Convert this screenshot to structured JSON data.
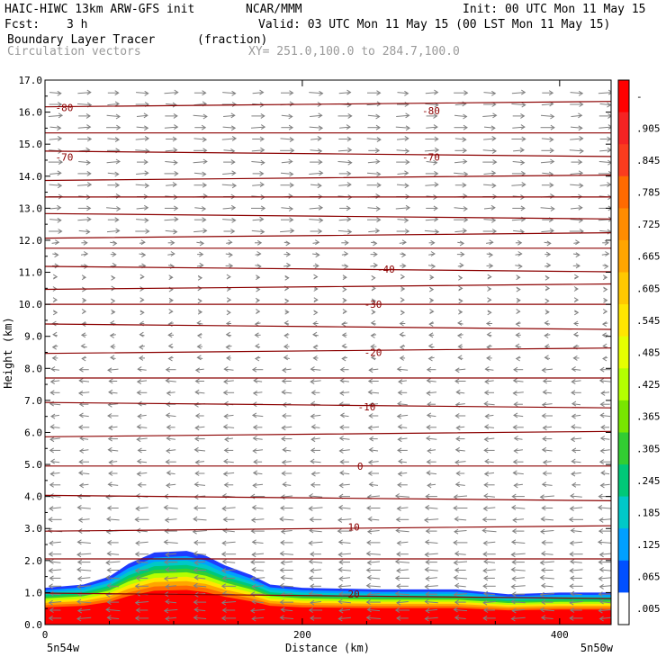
{
  "header": {
    "model": "HAIC-HIWC 13km ARW-GFS init",
    "org": "NCAR/MMM",
    "init": "Init: 00 UTC Mon 11 May 15",
    "fcst_label": "Fcst:",
    "fcst_value": "3 h",
    "valid": "Valid: 03 UTC Mon 11 May 15 (00 LST Mon 11 May 15)",
    "field_name": "Boundary Layer Tracer",
    "field_unit": "(fraction)",
    "vector_label": "Circulation vectors",
    "xy_label": "XY= 251.0,100.0 to 284.7,100.0"
  },
  "chart_data": {
    "type": "heatmap",
    "xlabel": "Distance (km)",
    "ylabel": "Height (km)",
    "xlim": [
      0,
      440
    ],
    "ylim": [
      0,
      17
    ],
    "x_ticks": [
      "0",
      "200",
      "400"
    ],
    "x_tick_values": [
      0,
      200,
      400
    ],
    "y_ticks": [
      "0.0",
      "1.0",
      "2.0",
      "3.0",
      "4.0",
      "5.0",
      "6.0",
      "7.0",
      "8.0",
      "9.0",
      "10.0",
      "11.0",
      "12.0",
      "13.0",
      "14.0",
      "15.0",
      "16.0",
      "17.0"
    ],
    "y_tick_values": [
      0,
      1,
      2,
      3,
      4,
      5,
      6,
      7,
      8,
      9,
      10,
      11,
      12,
      13,
      14,
      15,
      16,
      17
    ],
    "left_endpoint_label": "5n54w",
    "right_endpoint_label": "5n50w",
    "colorbar": {
      "labels": [
        "-",
        ".905",
        ".845",
        ".785",
        ".725",
        ".665",
        ".605",
        ".545",
        ".485",
        ".425",
        ".365",
        ".305",
        ".245",
        ".185",
        ".125",
        ".065",
        ".005"
      ],
      "colors": [
        "#ff0000",
        "#f52323",
        "#fa3c1e",
        "#ff6a00",
        "#ff8c00",
        "#ffa500",
        "#ffc800",
        "#ffe600",
        "#e6ff00",
        "#b4ff00",
        "#78e600",
        "#32cd32",
        "#00c878",
        "#00c8c8",
        "#00a0ff",
        "#0050ff",
        "#ffffff"
      ]
    },
    "tracer_top_km": [
      {
        "x": 0,
        "y": 1.15
      },
      {
        "x": 30,
        "y": 1.25
      },
      {
        "x": 50,
        "y": 1.5
      },
      {
        "x": 65,
        "y": 1.9
      },
      {
        "x": 85,
        "y": 2.25
      },
      {
        "x": 110,
        "y": 2.3
      },
      {
        "x": 125,
        "y": 2.15
      },
      {
        "x": 140,
        "y": 1.85
      },
      {
        "x": 160,
        "y": 1.55
      },
      {
        "x": 175,
        "y": 1.25
      },
      {
        "x": 200,
        "y": 1.15
      },
      {
        "x": 260,
        "y": 1.1
      },
      {
        "x": 320,
        "y": 1.1
      },
      {
        "x": 360,
        "y": 0.95
      },
      {
        "x": 400,
        "y": 1.0
      },
      {
        "x": 440,
        "y": 1.0
      }
    ],
    "isotherm_labels": [
      {
        "text": "-80",
        "x": 15,
        "y": 16.15
      },
      {
        "text": "-80",
        "x": 300,
        "y": 16.05
      },
      {
        "text": "-70",
        "x": 15,
        "y": 14.6
      },
      {
        "text": "-70",
        "x": 300,
        "y": 14.6
      },
      {
        "text": "-40",
        "x": 265,
        "y": 11.1
      },
      {
        "text": "-30",
        "x": 255,
        "y": 10.0
      },
      {
        "text": "-20",
        "x": 255,
        "y": 8.5
      },
      {
        "text": "-10",
        "x": 250,
        "y": 6.8
      },
      {
        "text": "0",
        "x": 245,
        "y": 4.95
      },
      {
        "text": "10",
        "x": 240,
        "y": 3.05
      },
      {
        "text": "20",
        "x": 240,
        "y": 0.95
      }
    ],
    "isotherm_heights_km": [
      16.25,
      15.35,
      14.7,
      13.95,
      13.35,
      12.75,
      12.15,
      11.75,
      11.1,
      10.55,
      10.0,
      9.3,
      8.55,
      7.7,
      6.85,
      5.95,
      4.95,
      3.95,
      3.0,
      2.05,
      0.9
    ],
    "grid": false,
    "legend": "right colorbar"
  }
}
